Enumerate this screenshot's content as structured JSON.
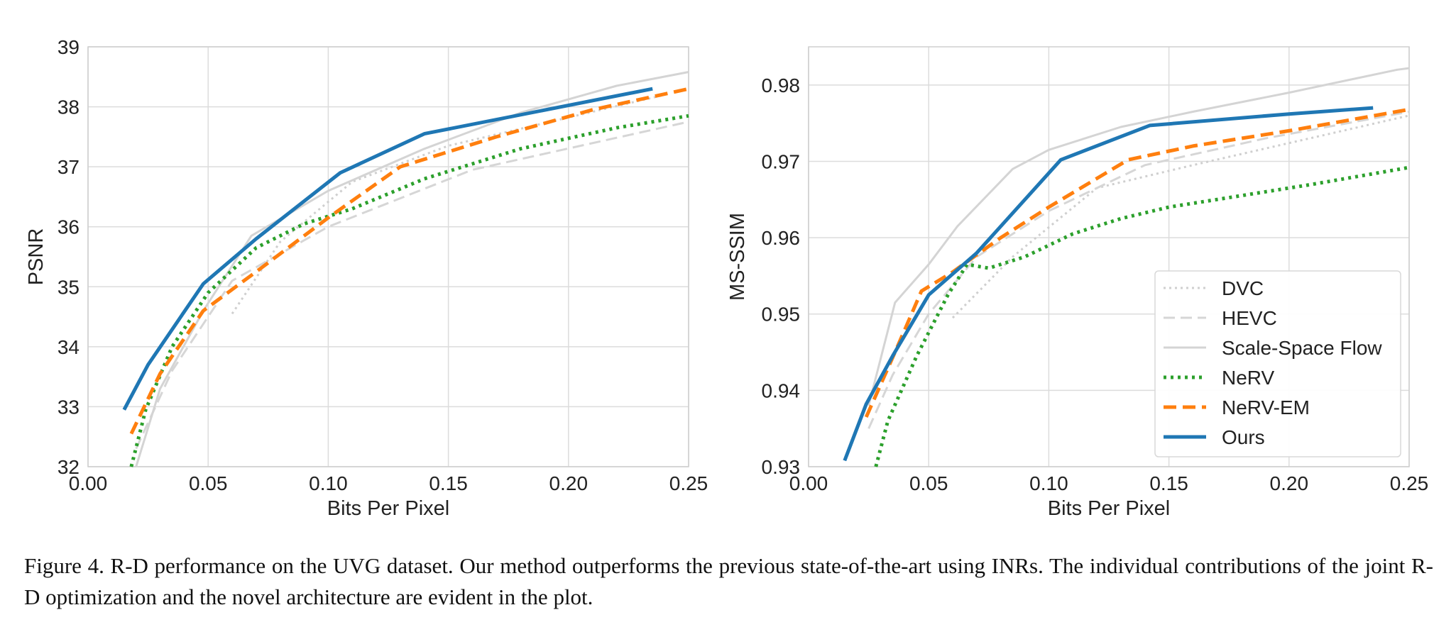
{
  "chart_data": [
    {
      "type": "line",
      "title": "",
      "xlabel": "Bits Per Pixel",
      "ylabel": "PSNR",
      "xlim": [
        0.0,
        0.25
      ],
      "ylim": [
        32,
        39
      ],
      "xticks": [
        "0.00",
        "0.05",
        "0.10",
        "0.15",
        "0.20",
        "0.25"
      ],
      "yticks": [
        "32",
        "33",
        "34",
        "35",
        "36",
        "37",
        "38",
        "39"
      ],
      "grid": true,
      "legend": "none",
      "series": [
        {
          "name": "DVC",
          "color": "#cfcfcf",
          "dash": "dotted",
          "x": [
            0.06,
            0.08,
            0.11,
            0.15,
            0.24
          ],
          "y": [
            34.55,
            35.75,
            36.75,
            37.35,
            38.2
          ]
        },
        {
          "name": "HEVC",
          "color": "#d6d6d6",
          "dash": "dashed",
          "x": [
            0.02,
            0.035,
            0.06,
            0.1,
            0.16,
            0.25
          ],
          "y": [
            32.3,
            33.6,
            35.1,
            36.0,
            36.95,
            37.75
          ]
        },
        {
          "name": "Scale-Space Flow",
          "color": "#d4d4d4",
          "dash": "solid",
          "x": [
            0.02,
            0.03,
            0.048,
            0.068,
            0.1,
            0.14,
            0.18,
            0.22,
            0.25
          ],
          "y": [
            32.0,
            33.3,
            34.6,
            35.85,
            36.6,
            37.3,
            37.9,
            38.35,
            38.58
          ]
        },
        {
          "name": "NeRV",
          "color": "#2ca02c",
          "dash": "nerv",
          "x": [
            0.018,
            0.024,
            0.035,
            0.05,
            0.07,
            0.09,
            0.11,
            0.14,
            0.18,
            0.22,
            0.25
          ],
          "y": [
            32.0,
            32.95,
            34.0,
            34.9,
            35.65,
            36.05,
            36.3,
            36.8,
            37.3,
            37.65,
            37.85
          ]
        },
        {
          "name": "NeRV-EM",
          "color": "#ff7f0e",
          "dash": "nervem",
          "x": [
            0.018,
            0.03,
            0.048,
            0.07,
            0.1,
            0.13,
            0.17,
            0.21,
            0.25
          ],
          "y": [
            32.55,
            33.55,
            34.6,
            35.25,
            36.15,
            37.0,
            37.5,
            37.95,
            38.3
          ]
        },
        {
          "name": "Ours",
          "color": "#1f77b4",
          "dash": "solid-bold",
          "x": [
            0.015,
            0.025,
            0.048,
            0.07,
            0.105,
            0.14,
            0.235
          ],
          "y": [
            32.95,
            33.7,
            35.05,
            35.8,
            36.9,
            37.55,
            38.3
          ]
        }
      ]
    },
    {
      "type": "line",
      "title": "",
      "xlabel": "Bits Per Pixel",
      "ylabel": "MS-SSIM",
      "xlim": [
        0.0,
        0.25
      ],
      "ylim": [
        0.93,
        0.985
      ],
      "xticks": [
        "0.00",
        "0.05",
        "0.10",
        "0.15",
        "0.20",
        "0.25"
      ],
      "yticks": [
        "0.93",
        "0.94",
        "0.95",
        "0.96",
        "0.97",
        "0.98"
      ],
      "grid": true,
      "legend": "bottom-right",
      "series": [
        {
          "name": "DVC",
          "color": "#cfcfcf",
          "dash": "dotted",
          "x": [
            0.06,
            0.085,
            0.12,
            0.16,
            0.25
          ],
          "y": [
            0.9495,
            0.9575,
            0.9665,
            0.9695,
            0.976
          ]
        },
        {
          "name": "HEVC",
          "color": "#d6d6d6",
          "dash": "dashed",
          "x": [
            0.025,
            0.035,
            0.05,
            0.07,
            0.1,
            0.14,
            0.19,
            0.25
          ],
          "y": [
            0.935,
            0.942,
            0.95,
            0.9575,
            0.9635,
            0.9695,
            0.973,
            0.9765
          ]
        },
        {
          "name": "Scale-Space Flow",
          "color": "#d4d4d4",
          "dash": "solid",
          "x": [
            0.025,
            0.036,
            0.05,
            0.062,
            0.085,
            0.1,
            0.13,
            0.16,
            0.2,
            0.245,
            0.25
          ],
          "y": [
            0.938,
            0.9515,
            0.9565,
            0.9615,
            0.969,
            0.9715,
            0.9745,
            0.9765,
            0.979,
            0.982,
            0.9822
          ]
        },
        {
          "name": "NeRV",
          "color": "#2ca02c",
          "dash": "nerv",
          "x": [
            0.028,
            0.033,
            0.045,
            0.058,
            0.066,
            0.075,
            0.09,
            0.11,
            0.13,
            0.15,
            0.18,
            0.21,
            0.25
          ],
          "y": [
            0.93,
            0.936,
            0.9445,
            0.9525,
            0.9565,
            0.956,
            0.9575,
            0.9605,
            0.9625,
            0.964,
            0.9655,
            0.967,
            0.9692
          ]
        },
        {
          "name": "NeRV-EM",
          "color": "#ff7f0e",
          "dash": "nervem",
          "x": [
            0.024,
            0.036,
            0.047,
            0.06,
            0.08,
            0.1,
            0.133,
            0.16,
            0.2,
            0.25
          ],
          "y": [
            0.9365,
            0.945,
            0.953,
            0.9555,
            0.96,
            0.964,
            0.9702,
            0.972,
            0.974,
            0.9768
          ]
        },
        {
          "name": "Ours",
          "color": "#1f77b4",
          "dash": "solid-bold",
          "x": [
            0.015,
            0.024,
            0.035,
            0.05,
            0.07,
            0.105,
            0.142,
            0.2,
            0.235
          ],
          "y": [
            0.9308,
            0.9382,
            0.9445,
            0.9525,
            0.958,
            0.9702,
            0.9747,
            0.9762,
            0.977
          ]
        }
      ]
    }
  ],
  "caption": {
    "text": "Figure 4.  R-D performance on the UVG dataset.  Our method outperforms the previous state-of-the-art using INRs.  The individual contributions of the joint R-D optimization and the novel architecture are evident in the plot."
  }
}
